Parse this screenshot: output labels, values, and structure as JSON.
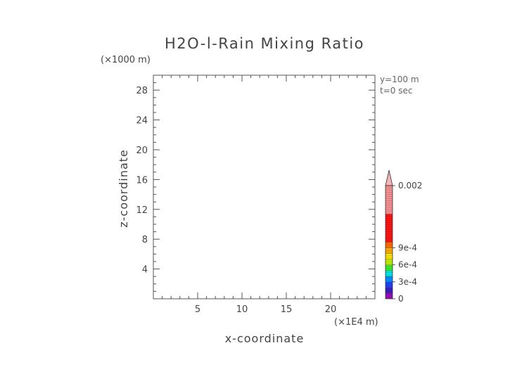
{
  "chart_data": {
    "type": "heatmap",
    "title": "H2O-l-Rain Mixing Ratio",
    "xlabel": "x-coordinate",
    "ylabel": "z-coordinate",
    "x_unit_label": "(×1E4 m)",
    "y_unit_label": "(×1000 m)",
    "xlim": [
      0,
      25
    ],
    "ylim": [
      0,
      30
    ],
    "x_major_ticks": [
      5,
      10,
      15,
      20
    ],
    "x_major_tick_labels": [
      "5",
      "10",
      "15",
      "20"
    ],
    "x_minor_ticks": [
      1,
      2,
      3,
      4,
      6,
      7,
      8,
      9,
      11,
      12,
      13,
      14,
      16,
      17,
      18,
      19,
      21,
      22,
      23,
      24
    ],
    "y_major_ticks": [
      4,
      8,
      12,
      16,
      20,
      24,
      28
    ],
    "y_major_tick_labels": [
      "4",
      "8",
      "12",
      "16",
      "20",
      "24",
      "28"
    ],
    "y_minor_ticks": [
      1,
      2,
      3,
      5,
      6,
      7,
      9,
      10,
      11,
      13,
      14,
      15,
      17,
      18,
      19,
      21,
      22,
      23,
      25,
      26,
      27,
      29
    ],
    "annotations": [
      "y=100 m",
      "t=0 sec"
    ],
    "data": [],
    "colorbar": {
      "min": 0,
      "max": 0.002,
      "ticks": [
        0,
        0.0003,
        0.0006,
        0.0009,
        0.002
      ],
      "tick_labels": [
        "0",
        "3e-4",
        "6e-4",
        "9e-4",
        "0.002"
      ],
      "segments": [
        {
          "lo": 0,
          "hi": 0.0001,
          "color": "#9b0db5"
        },
        {
          "lo": 0.0001,
          "hi": 0.0002,
          "color": "#3f1fc4"
        },
        {
          "lo": 0.0002,
          "hi": 0.0003,
          "color": "#1d45ff"
        },
        {
          "lo": 0.0003,
          "hi": 0.0004,
          "color": "#0091ff"
        },
        {
          "lo": 0.0004,
          "hi": 0.0005,
          "color": "#00e8e8"
        },
        {
          "lo": 0.0005,
          "hi": 0.0006,
          "color": "#3cef2a"
        },
        {
          "lo": 0.0006,
          "hi": 0.0007,
          "color": "#c6f000"
        },
        {
          "lo": 0.0007,
          "hi": 0.0008,
          "color": "#ffe800"
        },
        {
          "lo": 0.0008,
          "hi": 0.0009,
          "color": "#ffae00"
        },
        {
          "lo": 0.0009,
          "hi": 0.001,
          "color": "#ff6f00"
        },
        {
          "lo": 0.001,
          "hi": 0.0015,
          "color": "#ff1414"
        },
        {
          "lo": 0.0015,
          "hi": 0.002,
          "color": "#f59090"
        }
      ],
      "extend_color": "#f7b3b3"
    }
  }
}
